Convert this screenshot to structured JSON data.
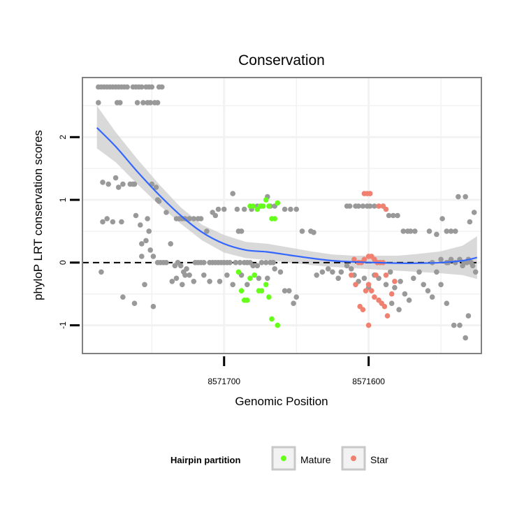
{
  "chart_data": {
    "type": "scatter",
    "title": "Conservation",
    "xlabel": "Genomic Position",
    "ylabel": "phyloP LRT conservation scores",
    "x_reversed": true,
    "xlim": [
      8571798,
      8571522
    ],
    "ylim": [
      -1.45,
      2.95
    ],
    "x_ticks": [
      8571700,
      8571600
    ],
    "x_tick_labels": [
      "8571700",
      "8571600"
    ],
    "y_ticks": [
      -1,
      0,
      1,
      2
    ],
    "y_tick_labels": [
      "-1",
      "0",
      "1",
      "2"
    ],
    "reference_line": {
      "y": 0,
      "style": "dashed"
    },
    "grid": true,
    "legend": {
      "title": "Hairpin partition",
      "position": "bottom",
      "entries": [
        {
          "label": "Mature",
          "color": "#66ff1a"
        },
        {
          "label": "Star",
          "color": "#f08070"
        }
      ]
    },
    "colors": {
      "unpartitioned": "#999999",
      "Mature": "#66ff1a",
      "Star": "#f08070",
      "smooth": "#3366ff",
      "ribbon": "#cccccc"
    },
    "series": [
      {
        "name": "Unpartitioned",
        "points": [
          [
            8571787,
            2.8
          ],
          [
            8571785,
            2.8
          ],
          [
            8571783,
            2.8
          ],
          [
            8571781,
            2.8
          ],
          [
            8571779,
            2.8
          ],
          [
            8571777,
            2.8
          ],
          [
            8571775,
            2.8
          ],
          [
            8571773,
            2.8
          ],
          [
            8571771,
            2.8
          ],
          [
            8571769,
            2.8
          ],
          [
            8571767,
            2.8
          ],
          [
            8571763,
            2.8
          ],
          [
            8571761,
            2.8
          ],
          [
            8571759,
            2.8
          ],
          [
            8571757,
            2.8
          ],
          [
            8571754,
            2.8
          ],
          [
            8571752,
            2.8
          ],
          [
            8571750,
            2.8
          ],
          [
            8571745,
            2.8
          ],
          [
            8571743,
            2.8
          ],
          [
            8571787,
            2.55
          ],
          [
            8571774,
            2.55
          ],
          [
            8571772,
            2.55
          ],
          [
            8571760,
            2.55
          ],
          [
            8571756,
            2.55
          ],
          [
            8571753,
            2.55
          ],
          [
            8571751,
            2.55
          ],
          [
            8571748,
            2.55
          ],
          [
            8571746,
            2.55
          ],
          [
            8571784,
            1.28
          ],
          [
            8571780,
            1.25
          ],
          [
            8571775,
            1.35
          ],
          [
            8571773,
            1.2
          ],
          [
            8571770,
            1.25
          ],
          [
            8571765,
            1.25
          ],
          [
            8571763,
            1.25
          ],
          [
            8571762,
            1.25
          ],
          [
            8571750,
            1.25
          ],
          [
            8571747,
            1.2
          ],
          [
            8571746,
            1.0
          ],
          [
            8571745,
            0.98
          ],
          [
            8571784,
            0.65
          ],
          [
            8571781,
            0.7
          ],
          [
            8571777,
            0.65
          ],
          [
            8571771,
            0.65
          ],
          [
            8571761,
            0.75
          ],
          [
            8571758,
            0.6
          ],
          [
            8571753,
            0.7
          ],
          [
            8571752,
            0.5
          ],
          [
            8571754,
            0.35
          ],
          [
            8571757,
            0.3
          ],
          [
            8571757,
            0.1
          ],
          [
            8571751,
            0.2
          ],
          [
            8571749,
            0.1
          ],
          [
            8571740,
            0.8
          ],
          [
            8571737,
            0.3
          ],
          [
            8571733,
            0.7
          ],
          [
            8571731,
            0.7
          ],
          [
            8571729,
            0.7
          ],
          [
            8571727,
            0.7
          ],
          [
            8571724,
            0.7
          ],
          [
            8571721,
            0.7
          ],
          [
            8571718,
            0.7
          ],
          [
            8571716,
            0.7
          ],
          [
            8571712,
            0.5
          ],
          [
            8571708,
            0.8
          ],
          [
            8571706,
            0.75
          ],
          [
            8571704,
            0.85
          ],
          [
            8571700,
            0.85
          ],
          [
            8571694,
            1.1
          ],
          [
            8571691,
            0.85
          ],
          [
            8571690,
            0.5
          ],
          [
            8571688,
            0.5
          ],
          [
            8571686,
            0.85
          ],
          [
            8571681,
            0.85
          ],
          [
            8571677,
            0.9
          ],
          [
            8571674,
            0.9
          ],
          [
            8571670,
            1.05
          ],
          [
            8571668,
            0.9
          ],
          [
            8571665,
            0.9
          ],
          [
            8571658,
            0.85
          ],
          [
            8571654,
            0.85
          ],
          [
            8571650,
            0.85
          ],
          [
            8571646,
            0.5
          ],
          [
            8571640,
            0.5
          ],
          [
            8571638,
            0.48
          ],
          [
            8571746,
            0.0
          ],
          [
            8571744,
            0.0
          ],
          [
            8571742,
            0.0
          ],
          [
            8571740,
            0.0
          ],
          [
            8571734,
            -0.05
          ],
          [
            8571732,
            0.0
          ],
          [
            8571730,
            -0.05
          ],
          [
            8571728,
            -0.15
          ],
          [
            8571726,
            -0.1
          ],
          [
            8571724,
            -0.2
          ],
          [
            8571720,
            0.0
          ],
          [
            8571718,
            0.0
          ],
          [
            8571716,
            0.0
          ],
          [
            8571714,
            0.0
          ],
          [
            8571710,
            0.0
          ],
          [
            8571708,
            0.0
          ],
          [
            8571706,
            0.0
          ],
          [
            8571704,
            0.0
          ],
          [
            8571702,
            0.0
          ],
          [
            8571700,
            0.0
          ],
          [
            8571698,
            0.0
          ],
          [
            8571696,
            0.0
          ],
          [
            8571692,
            0.0
          ],
          [
            8571689,
            0.0
          ],
          [
            8571686,
            0.0
          ],
          [
            8571684,
            0.0
          ],
          [
            8571682,
            0.0
          ],
          [
            8571680,
            -0.05
          ],
          [
            8571677,
            -0.05
          ],
          [
            8571674,
            0.0
          ],
          [
            8571671,
            0.0
          ],
          [
            8571668,
            0.0
          ],
          [
            8571666,
            0.0
          ],
          [
            8571785,
            -0.15
          ],
          [
            8571770,
            -0.55
          ],
          [
            8571762,
            -0.65
          ],
          [
            8571755,
            -0.35
          ],
          [
            8571749,
            -0.7
          ],
          [
            8571736,
            -0.3
          ],
          [
            8571733,
            -0.25
          ],
          [
            8571729,
            -0.35
          ],
          [
            8571727,
            -0.2
          ],
          [
            8571721,
            -0.3
          ],
          [
            8571714,
            -0.2
          ],
          [
            8571710,
            -0.3
          ],
          [
            8571703,
            -0.3
          ],
          [
            8571698,
            -0.2
          ],
          [
            8571694,
            -0.35
          ],
          [
            8571688,
            -0.2
          ],
          [
            8571684,
            -0.35
          ],
          [
            8571676,
            -0.25
          ],
          [
            8571670,
            -0.25
          ],
          [
            8571665,
            -0.1
          ],
          [
            8571661,
            -0.15
          ],
          [
            8571658,
            -0.45
          ],
          [
            8571655,
            -0.45
          ],
          [
            8571652,
            -0.65
          ],
          [
            8571650,
            -0.55
          ],
          [
            8571636,
            -0.2
          ],
          [
            8571632,
            -0.15
          ],
          [
            8571628,
            -0.1
          ],
          [
            8571625,
            -0.15
          ],
          [
            8571621,
            -0.25
          ],
          [
            8571619,
            -0.15
          ],
          [
            8571615,
            -0.05
          ],
          [
            8571612,
            -0.1
          ],
          [
            8571610,
            -0.2
          ],
          [
            8571607,
            -0.3
          ],
          [
            8571603,
            -0.25
          ],
          [
            8571600,
            -0.4
          ],
          [
            8571596,
            -0.2
          ],
          [
            8571593,
            -0.25
          ],
          [
            8571588,
            -0.35
          ],
          [
            8571585,
            -0.15
          ],
          [
            8571582,
            -0.4
          ],
          [
            8571578,
            -0.3
          ],
          [
            8571575,
            -0.5
          ],
          [
            8571572,
            -0.6
          ],
          [
            8571569,
            -0.25
          ],
          [
            8571565,
            -0.15
          ],
          [
            8571562,
            -0.35
          ],
          [
            8571559,
            -0.45
          ],
          [
            8571556,
            -0.55
          ],
          [
            8571553,
            -0.15
          ],
          [
            8571550,
            -0.35
          ],
          [
            8571546,
            -0.65
          ],
          [
            8571541,
            -1.0
          ],
          [
            8571537,
            -1.0
          ],
          [
            8571533,
            -1.2
          ],
          [
            8571531,
            -0.85
          ],
          [
            8571579,
            -0.75
          ],
          [
            8571584,
            -0.65
          ],
          [
            8571615,
            0.9
          ],
          [
            8571613,
            0.9
          ],
          [
            8571609,
            0.9
          ],
          [
            8571607,
            0.9
          ],
          [
            8571604,
            0.9
          ],
          [
            8571601,
            0.9
          ],
          [
            8571599,
            0.9
          ],
          [
            8571596,
            0.9
          ],
          [
            8571593,
            0.9
          ],
          [
            8571590,
            0.9
          ],
          [
            8571586,
            0.75
          ],
          [
            8571583,
            0.75
          ],
          [
            8571580,
            0.75
          ],
          [
            8571576,
            0.5
          ],
          [
            8571573,
            0.5
          ],
          [
            8571571,
            0.5
          ],
          [
            8571568,
            0.5
          ],
          [
            8571558,
            0.5
          ],
          [
            8571553,
            0.45
          ],
          [
            8571549,
            0.7
          ],
          [
            8571546,
            0.5
          ],
          [
            8571543,
            0.5
          ],
          [
            8571540,
            0.5
          ],
          [
            8571556,
            0.0
          ],
          [
            8571550,
            0.05
          ],
          [
            8571546,
            0.0
          ],
          [
            8571543,
            0.05
          ],
          [
            8571540,
            0.0
          ],
          [
            8571537,
            0.05
          ],
          [
            8571534,
            0.0
          ],
          [
            8571531,
            0.05
          ],
          [
            8571538,
            1.05
          ],
          [
            8571533,
            1.05
          ],
          [
            8571530,
            0.65
          ],
          [
            8571527,
            0.8
          ],
          [
            8571545,
            0.0
          ],
          [
            8571532,
            0.0
          ],
          [
            8571535,
            -0.05
          ],
          [
            8571528,
            -0.05
          ],
          [
            8571526,
            -0.15
          ],
          [
            8571529,
            0.0
          ]
        ]
      },
      {
        "name": "Mature",
        "points": [
          [
            8571690,
            -0.15
          ],
          [
            8571688,
            -0.45
          ],
          [
            8571686,
            -0.6
          ],
          [
            8571684,
            -0.6
          ],
          [
            8571682,
            -0.25
          ],
          [
            8571679,
            -0.2
          ],
          [
            8571676,
            -0.45
          ],
          [
            8571674,
            -0.45
          ],
          [
            8571671,
            -0.35
          ],
          [
            8571669,
            -0.55
          ],
          [
            8571667,
            -0.9
          ],
          [
            8571663,
            -1.0
          ],
          [
            8571682,
            0.9
          ],
          [
            8571680,
            0.9
          ],
          [
            8571677,
            0.85
          ],
          [
            8571675,
            0.9
          ],
          [
            8571673,
            0.9
          ],
          [
            8571671,
            1.0
          ],
          [
            8571669,
            0.9
          ],
          [
            8571667,
            0.7
          ],
          [
            8571665,
            0.7
          ],
          [
            8571663,
            0.95
          ]
        ]
      },
      {
        "name": "Star",
        "points": [
          [
            8571603,
            1.1
          ],
          [
            8571601,
            1.1
          ],
          [
            8571599,
            1.1
          ],
          [
            8571593,
            0.9
          ],
          [
            8571590,
            0.9
          ],
          [
            8571588,
            0.85
          ],
          [
            8571610,
            0.05
          ],
          [
            8571607,
            0.0
          ],
          [
            8571605,
            0.0
          ],
          [
            8571603,
            0.05
          ],
          [
            8571600,
            0.1
          ],
          [
            8571598,
            0.1
          ],
          [
            8571596,
            0.05
          ],
          [
            8571594,
            0.0
          ],
          [
            8571592,
            0.0
          ],
          [
            8571590,
            0.0
          ],
          [
            8571612,
            -0.2
          ],
          [
            8571609,
            -0.35
          ],
          [
            8571606,
            -0.7
          ],
          [
            8571604,
            -0.75
          ],
          [
            8571602,
            -0.45
          ],
          [
            8571600,
            -0.35
          ],
          [
            8571598,
            -0.45
          ],
          [
            8571596,
            -0.55
          ],
          [
            8571593,
            -0.6
          ],
          [
            8571591,
            -0.65
          ],
          [
            8571589,
            -0.7
          ],
          [
            8571587,
            -0.85
          ],
          [
            8571584,
            -0.5
          ],
          [
            8571582,
            -0.3
          ],
          [
            8571600,
            -1.0
          ],
          [
            8571595,
            -0.2
          ],
          [
            8571588,
            -0.2
          ]
        ]
      }
    ],
    "smooth": {
      "x": [
        8571788,
        8571775,
        8571760,
        8571745,
        8571730,
        8571715,
        8571700,
        8571685,
        8571670,
        8571655,
        8571640,
        8571625,
        8571610,
        8571595,
        8571580,
        8571565,
        8571550,
        8571535,
        8571525
      ],
      "y": [
        2.15,
        1.85,
        1.45,
        1.08,
        0.75,
        0.48,
        0.3,
        0.2,
        0.17,
        0.12,
        0.07,
        0.03,
        0.01,
        0.0,
        -0.01,
        -0.01,
        0.0,
        0.03,
        0.08
      ],
      "ci_low": [
        1.82,
        1.6,
        1.25,
        0.92,
        0.62,
        0.35,
        0.16,
        0.07,
        0.04,
        0.0,
        -0.04,
        -0.07,
        -0.09,
        -0.11,
        -0.13,
        -0.15,
        -0.17,
        -0.2,
        -0.26
      ],
      "ci_high": [
        2.5,
        2.08,
        1.65,
        1.25,
        0.88,
        0.6,
        0.44,
        0.33,
        0.3,
        0.24,
        0.18,
        0.13,
        0.11,
        0.11,
        0.11,
        0.14,
        0.18,
        0.27,
        0.42
      ]
    }
  }
}
